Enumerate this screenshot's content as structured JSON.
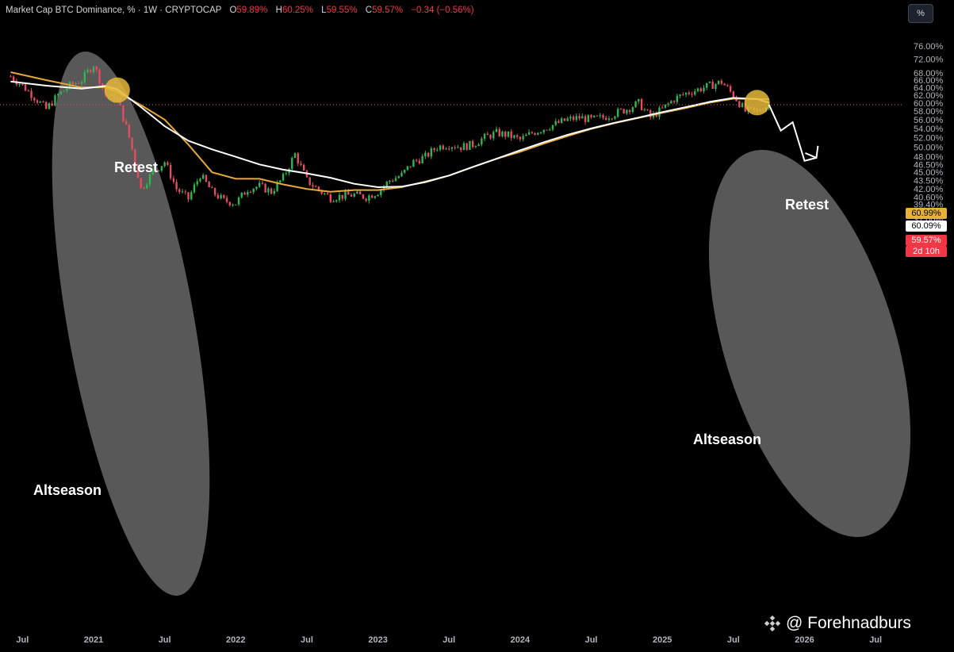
{
  "header": {
    "symbol": "Market Cap BTC Dominance, % · 1W · CRYPTOCAP",
    "o_label": "O",
    "o": "59.89%",
    "h_label": "H",
    "h": "60.25%",
    "l_label": "L",
    "l": "59.55%",
    "c_label": "C",
    "c": "59.57%",
    "change": "−0.34 (−0.56%)"
  },
  "scale_button": "%",
  "price_tags": {
    "ma_yellow": "60.99%",
    "ma_white": "60.09%",
    "last_price": "59.57%",
    "countdown": "2d 10h"
  },
  "annotations": {
    "retest_left": "Retest",
    "retest_right": "Retest",
    "altseason_left": "Altseason",
    "altseason_right": "Altseason"
  },
  "watermark": "@ Forehnadburs",
  "colors": {
    "background": "#000000",
    "up": "#2fb650",
    "down": "#e84a5f",
    "ma_white": "#ffffff",
    "ma_yellow": "#e5a93a",
    "highlight_ellipse": "#6b6b6b",
    "marker": "#e6b93a"
  },
  "chart_data": {
    "type": "line",
    "title": "Market Cap BTC Dominance, % · 1W · CRYPTOCAP",
    "xlabel": "",
    "ylabel": "",
    "ylim": [
      37.0,
      78.0
    ],
    "y_scale": "log",
    "grid": false,
    "y_ticks": [
      "76.00%",
      "72.00%",
      "68.00%",
      "66.00%",
      "64.00%",
      "62.00%",
      "60.00%",
      "58.00%",
      "56.00%",
      "54.00%",
      "52.00%",
      "50.00%",
      "48.00%",
      "46.50%",
      "45.00%",
      "43.50%",
      "42.00%",
      "40.60%",
      "39.40%",
      "38.20%",
      "37.00%"
    ],
    "x_ticks": [
      "Jul",
      "2021",
      "Jul",
      "2022",
      "Jul",
      "2023",
      "Jul",
      "2024",
      "Jul",
      "2025",
      "Jul",
      "2026",
      "Jul"
    ],
    "x_tick_dates": [
      "2020-07",
      "2021-01",
      "2021-07",
      "2022-01",
      "2022-07",
      "2023-01",
      "2023-07",
      "2024-01",
      "2024-07",
      "2025-01",
      "2025-07",
      "2026-01",
      "2026-07"
    ],
    "price": {
      "name": "BTC Dominance weekly close",
      "x": [
        "2020-06",
        "2020-07",
        "2020-08",
        "2020-09",
        "2020-10",
        "2020-11",
        "2020-12",
        "2021-01",
        "2021-02",
        "2021-03",
        "2021-04",
        "2021-05",
        "2021-06",
        "2021-07",
        "2021-08",
        "2021-09",
        "2021-10",
        "2021-11",
        "2021-12",
        "2022-01",
        "2022-02",
        "2022-03",
        "2022-04",
        "2022-05",
        "2022-06",
        "2022-07",
        "2022-08",
        "2022-09",
        "2022-10",
        "2022-11",
        "2022-12",
        "2023-01",
        "2023-02",
        "2023-03",
        "2023-04",
        "2023-05",
        "2023-06",
        "2023-07",
        "2023-08",
        "2023-09",
        "2023-10",
        "2023-11",
        "2023-12",
        "2024-01",
        "2024-02",
        "2024-03",
        "2024-04",
        "2024-05",
        "2024-06",
        "2024-07",
        "2024-08",
        "2024-09",
        "2024-10",
        "2024-11",
        "2024-12",
        "2025-01",
        "2025-02",
        "2025-03",
        "2025-04",
        "2025-05",
        "2025-06",
        "2025-07",
        "2025-08",
        "2025-09",
        "2025-10"
      ],
      "y": [
        67.0,
        64.5,
        61.5,
        58.5,
        62.0,
        64.5,
        66.0,
        70.5,
        62.0,
        61.0,
        52.0,
        42.0,
        45.0,
        47.0,
        42.0,
        40.3,
        44.5,
        41.5,
        40.0,
        39.6,
        42.0,
        42.5,
        41.5,
        44.0,
        48.5,
        43.5,
        41.8,
        40.5,
        40.8,
        41.0,
        40.6,
        41.5,
        43.5,
        44.5,
        47.0,
        48.0,
        50.0,
        50.5,
        50.0,
        50.5,
        52.0,
        53.0,
        52.5,
        51.5,
        53.0,
        54.0,
        55.0,
        56.0,
        56.5,
        56.0,
        56.5,
        57.5,
        58.5,
        60.0,
        56.5,
        58.5,
        61.0,
        62.5,
        63.5,
        64.5,
        65.5,
        62.0,
        58.0,
        58.0,
        59.57
      ]
    },
    "series": [
      {
        "x": [
          "2020-06",
          "2020-09",
          "2020-12",
          "2021-02",
          "2021-03",
          "2021-05",
          "2021-07",
          "2021-09",
          "2021-11",
          "2022-01",
          "2022-03",
          "2022-05",
          "2022-07",
          "2022-09",
          "2022-11",
          "2023-01",
          "2023-03",
          "2023-05",
          "2023-07",
          "2023-09",
          "2023-11",
          "2024-01",
          "2024-03",
          "2024-05",
          "2024-07",
          "2024-09",
          "2024-11",
          "2025-01",
          "2025-03",
          "2025-05",
          "2025-07",
          "2025-09",
          "2025-10"
        ],
        "y": [
          65.6,
          64.5,
          63.7,
          64.4,
          63.5,
          59.0,
          54.5,
          51.3,
          49.5,
          48.0,
          46.5,
          45.5,
          44.8,
          44.0,
          42.9,
          42.3,
          42.4,
          43.2,
          44.4,
          46.0,
          47.6,
          49.3,
          51.0,
          52.6,
          54.0,
          55.3,
          56.5,
          57.8,
          59.0,
          60.3,
          61.3,
          61.0,
          60.09
        ]
      },
      {
        "x": [
          "2020-06",
          "2020-09",
          "2020-12",
          "2021-02",
          "2021-03",
          "2021-05",
          "2021-07",
          "2021-09",
          "2021-11",
          "2022-01",
          "2022-03",
          "2022-05",
          "2022-07",
          "2022-09",
          "2022-11",
          "2023-01",
          "2023-03",
          "2023-05",
          "2023-07",
          "2023-09",
          "2023-11",
          "2024-01",
          "2024-03",
          "2024-05",
          "2024-07",
          "2024-09",
          "2024-11",
          "2025-01",
          "2025-03",
          "2025-05",
          "2025-07",
          "2025-09",
          "2025-10"
        ],
        "y": [
          68.2,
          66.0,
          64.0,
          64.1,
          62.8,
          59.5,
          56.0,
          50.5,
          45.0,
          43.8,
          43.8,
          42.8,
          42.0,
          41.5,
          41.8,
          41.8,
          42.3,
          43.3,
          44.4,
          46.0,
          47.6,
          49.0,
          50.7,
          52.3,
          53.9,
          55.2,
          56.4,
          57.6,
          58.8,
          60.1,
          61.1,
          61.0,
          60.99
        ]
      }
    ],
    "projection": {
      "x": [
        "2025-10",
        "2025-11",
        "2025-12",
        "2026-01",
        "2026-02"
      ],
      "y": [
        59.6,
        53.5,
        55.4,
        47.2,
        47.8
      ]
    },
    "highlight_zones": [
      {
        "label": "Altseason",
        "x_range": [
          "2020-11",
          "2021-09"
        ]
      },
      {
        "label": "Altseason",
        "x_range": [
          "2025-01",
          "2026-03"
        ]
      }
    ],
    "markers": [
      {
        "label": "Retest",
        "x": "2021-03",
        "y": 63.3
      },
      {
        "label": "Retest",
        "x": "2025-09",
        "y": 60.1
      }
    ],
    "current_price_line": 59.57
  }
}
